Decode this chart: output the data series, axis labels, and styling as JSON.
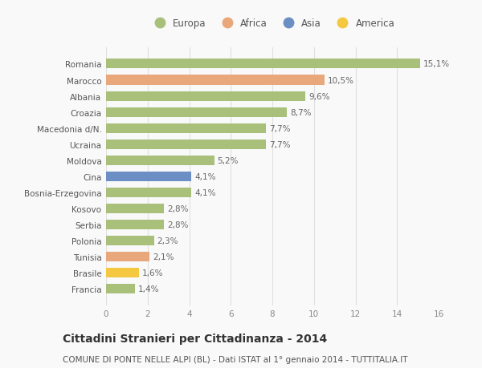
{
  "categories": [
    "Francia",
    "Brasile",
    "Tunisia",
    "Polonia",
    "Serbia",
    "Kosovo",
    "Bosnia-Erzegovina",
    "Cina",
    "Moldova",
    "Ucraina",
    "Macedonia d/N.",
    "Croazia",
    "Albania",
    "Marocco",
    "Romania"
  ],
  "values": [
    1.4,
    1.6,
    2.1,
    2.3,
    2.8,
    2.8,
    4.1,
    4.1,
    5.2,
    7.7,
    7.7,
    8.7,
    9.6,
    10.5,
    15.1
  ],
  "labels": [
    "1,4%",
    "1,6%",
    "2,1%",
    "2,3%",
    "2,8%",
    "2,8%",
    "4,1%",
    "4,1%",
    "5,2%",
    "7,7%",
    "7,7%",
    "8,7%",
    "9,6%",
    "10,5%",
    "15,1%"
  ],
  "colors": [
    "#a8c07a",
    "#f5c842",
    "#e8a87c",
    "#a8c07a",
    "#a8c07a",
    "#a8c07a",
    "#a8c07a",
    "#6b8fc4",
    "#a8c07a",
    "#a8c07a",
    "#a8c07a",
    "#a8c07a",
    "#a8c07a",
    "#e8a87c",
    "#a8c07a"
  ],
  "legend_labels": [
    "Europa",
    "Africa",
    "Asia",
    "America"
  ],
  "legend_colors": [
    "#a8c07a",
    "#e8a87c",
    "#6b8fc4",
    "#f5c842"
  ],
  "title": "Cittadini Stranieri per Cittadinanza - 2014",
  "subtitle": "COMUNE DI PONTE NELLE ALPI (BL) - Dati ISTAT al 1° gennaio 2014 - TUTTITALIA.IT",
  "xlim": [
    0,
    16
  ],
  "xticks": [
    0,
    2,
    4,
    6,
    8,
    10,
    12,
    14,
    16
  ],
  "bar_height": 0.6,
  "background_color": "#f9f9f9",
  "grid_color": "#e0e0e0",
  "label_fontsize": 7.5,
  "ytick_fontsize": 7.5,
  "xtick_fontsize": 7.5,
  "title_fontsize": 10,
  "subtitle_fontsize": 7.5,
  "legend_fontsize": 8.5
}
